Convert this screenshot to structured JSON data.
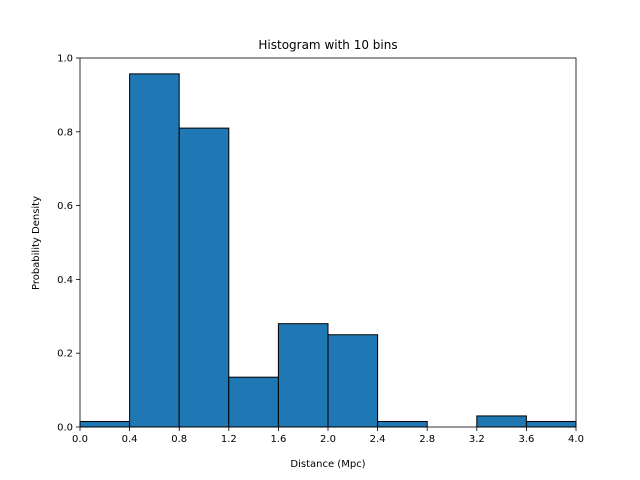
{
  "chart_data": {
    "type": "bar",
    "title": "Histogram with 10 bins",
    "xlabel": "Distance (Mpc)",
    "ylabel": "Probability Density",
    "xlim": [
      0.0,
      4.0
    ],
    "ylim": [
      0.0,
      1.0
    ],
    "grid": false,
    "bar_color": "#1f77b4",
    "edge_color": "#000000",
    "bin_edges": [
      0.0,
      0.4,
      0.8,
      1.2,
      1.6,
      2.0,
      2.4,
      2.8,
      3.2,
      3.6,
      4.0
    ],
    "values": [
      0.015,
      0.957,
      0.81,
      0.135,
      0.28,
      0.25,
      0.015,
      0.0,
      0.03,
      0.015
    ],
    "xticks": [
      0.0,
      0.4,
      0.8,
      1.2,
      1.6,
      2.0,
      2.4,
      2.8,
      3.2,
      3.6,
      4.0
    ],
    "xtick_labels": [
      "0.0",
      "0.4",
      "0.8",
      "1.2",
      "1.6",
      "2.0",
      "2.4",
      "2.8",
      "3.2",
      "3.6",
      "4.0"
    ],
    "yticks": [
      0.0,
      0.2,
      0.4,
      0.6,
      0.8,
      1.0
    ],
    "ytick_labels": [
      "0.0",
      "0.2",
      "0.4",
      "0.6",
      "0.8",
      "1.0"
    ]
  }
}
